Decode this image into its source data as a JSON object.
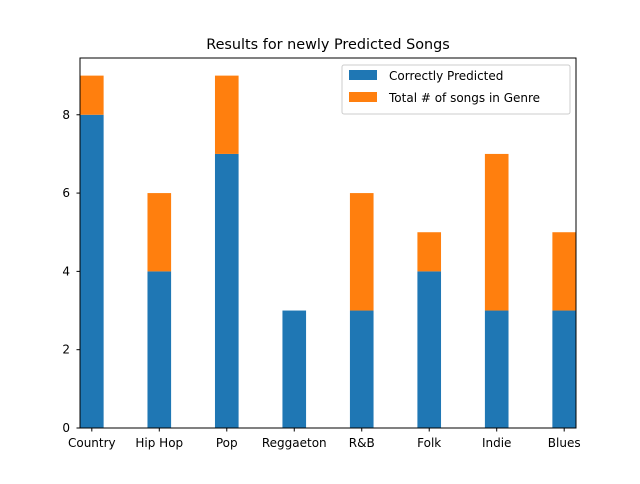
{
  "chart_data": {
    "type": "bar",
    "stacked": true,
    "title": "Results for newly Predicted Songs",
    "xlabel": "",
    "ylabel": "",
    "categories": [
      "Country",
      "Hip Hop",
      "Pop",
      "Reggaeton",
      "R&B",
      "Folk",
      "Indie",
      "Blues"
    ],
    "series": [
      {
        "name": "Correctly Predicted",
        "values": [
          8,
          4,
          7,
          3,
          3,
          4,
          3,
          3
        ],
        "color": "#1f77b4"
      },
      {
        "name": "Total # of songs in Genre",
        "values": [
          1,
          2,
          2,
          0,
          3,
          1,
          4,
          2
        ],
        "color": "#ff7f0e"
      }
    ],
    "totals": [
      9,
      6,
      9,
      3,
      6,
      5,
      7,
      5
    ],
    "ylim": [
      0,
      9.45
    ],
    "yticks": [
      0,
      2,
      4,
      6,
      8
    ],
    "grid": false,
    "legend_position": "upper right"
  }
}
